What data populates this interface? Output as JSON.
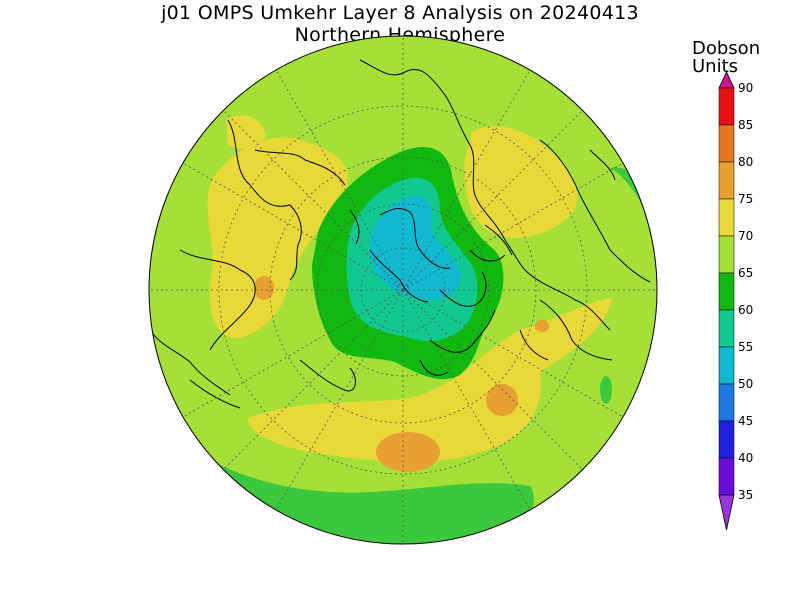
{
  "title_line1": "j01 OMPS Umkehr Layer 8 Analysis on 20240413",
  "title_line2": "Northern Hemisphere",
  "colorbar": {
    "units_line1": "Dobson",
    "units_line2": "Units",
    "levels": [
      35,
      40,
      45,
      50,
      55,
      60,
      65,
      70,
      75,
      80,
      85,
      90
    ],
    "level_labels": [
      "35",
      "40",
      "45",
      "50",
      "55",
      "60",
      "65",
      "70",
      "75",
      "80",
      "85",
      "90"
    ],
    "colors": [
      "#8a2be2",
      "#6a0dd6",
      "#2020e0",
      "#1e78e0",
      "#10b8d0",
      "#10c890",
      "#10b810",
      "#a4e038",
      "#e8d838",
      "#e8a030",
      "#e87820",
      "#e81010",
      "#d0148c"
    ],
    "bottom_extension_color": "#9a36d8",
    "top_extension_color": "#d0148c"
  },
  "map": {
    "projection": "north-polar-stereographic",
    "hemisphere": "Northern",
    "background_value_color": "#a4e038"
  }
}
